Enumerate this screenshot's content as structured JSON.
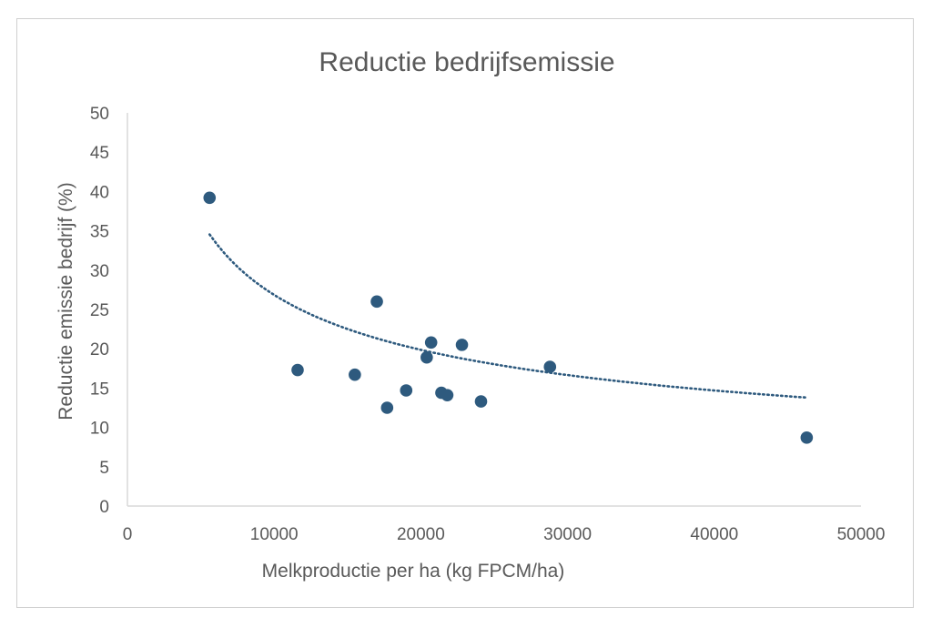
{
  "chart_data": {
    "type": "scatter",
    "title": "Reductie bedrijfsemissie",
    "xlabel": "Melkproductie per ha (kg FPCM/ha)",
    "ylabel": "Reductie emissie bedrijf (%)",
    "xlim": [
      0,
      50000
    ],
    "ylim": [
      0,
      50
    ],
    "x_ticks": [
      "0",
      "10000",
      "20000",
      "30000",
      "40000",
      "50000"
    ],
    "y_ticks": [
      "0",
      "5",
      "10",
      "15",
      "20",
      "25",
      "30",
      "35",
      "40",
      "45",
      "50"
    ],
    "grid": false,
    "legend": "none",
    "point_color": "#2e5a7e",
    "trend_color": "#2e5a7e",
    "points": [
      {
        "x": 5600,
        "y": 39.2
      },
      {
        "x": 11600,
        "y": 17.3
      },
      {
        "x": 15500,
        "y": 16.7
      },
      {
        "x": 17000,
        "y": 26.0
      },
      {
        "x": 17700,
        "y": 12.5
      },
      {
        "x": 19000,
        "y": 14.7
      },
      {
        "x": 20400,
        "y": 18.9
      },
      {
        "x": 20700,
        "y": 20.8
      },
      {
        "x": 21400,
        "y": 14.4
      },
      {
        "x": 21800,
        "y": 14.1
      },
      {
        "x": 22800,
        "y": 20.5
      },
      {
        "x": 24100,
        "y": 13.3
      },
      {
        "x": 28800,
        "y": 17.7
      },
      {
        "x": 46300,
        "y": 8.7
      }
    ],
    "trendline": {
      "type": "power",
      "x_range": [
        5600,
        46300
      ],
      "coefficient": 1470,
      "exponent": -0.4346,
      "style": "dotted"
    }
  }
}
